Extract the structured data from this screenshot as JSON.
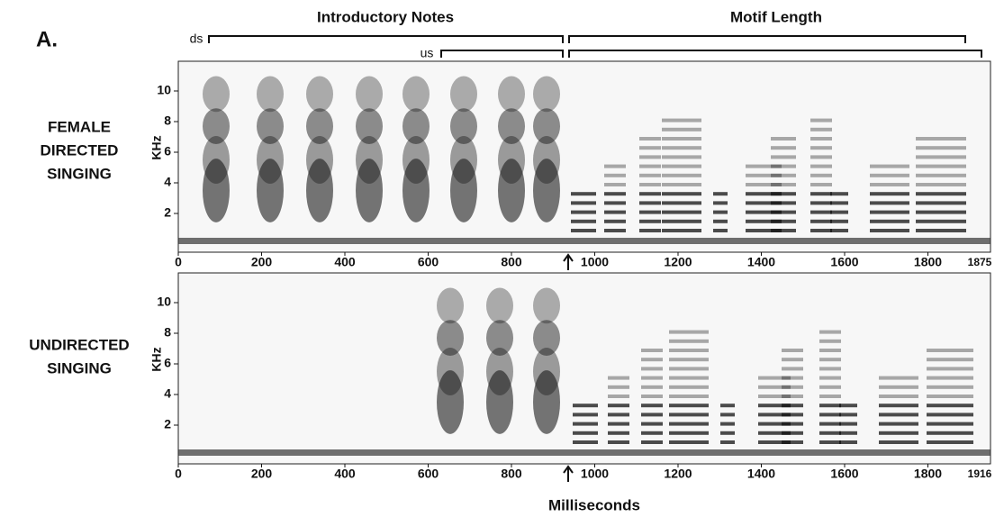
{
  "panel_label": "A.",
  "headers": {
    "introductory_notes": "Introductory Notes",
    "motif_length": "Motif Length",
    "ds": "ds",
    "us": "us"
  },
  "panels": [
    {
      "label": [
        "FEMALE",
        "DIRECTED",
        "SINGING"
      ],
      "ylabel": "KHz",
      "yticks": [
        2,
        4,
        6,
        8,
        10
      ],
      "xticks": [
        0,
        200,
        400,
        600,
        800,
        1000,
        1200,
        1400,
        1600,
        1800
      ],
      "end_label": "1875"
    },
    {
      "label": [
        "UNDIRECTED",
        "SINGING"
      ],
      "ylabel": "KHz",
      "yticks": [
        2,
        4,
        6,
        8,
        10
      ],
      "xticks": [
        0,
        200,
        400,
        600,
        800,
        1000,
        1200,
        1400,
        1600,
        1800
      ],
      "end_label": "1916"
    }
  ],
  "xlabel": "Milliseconds"
}
